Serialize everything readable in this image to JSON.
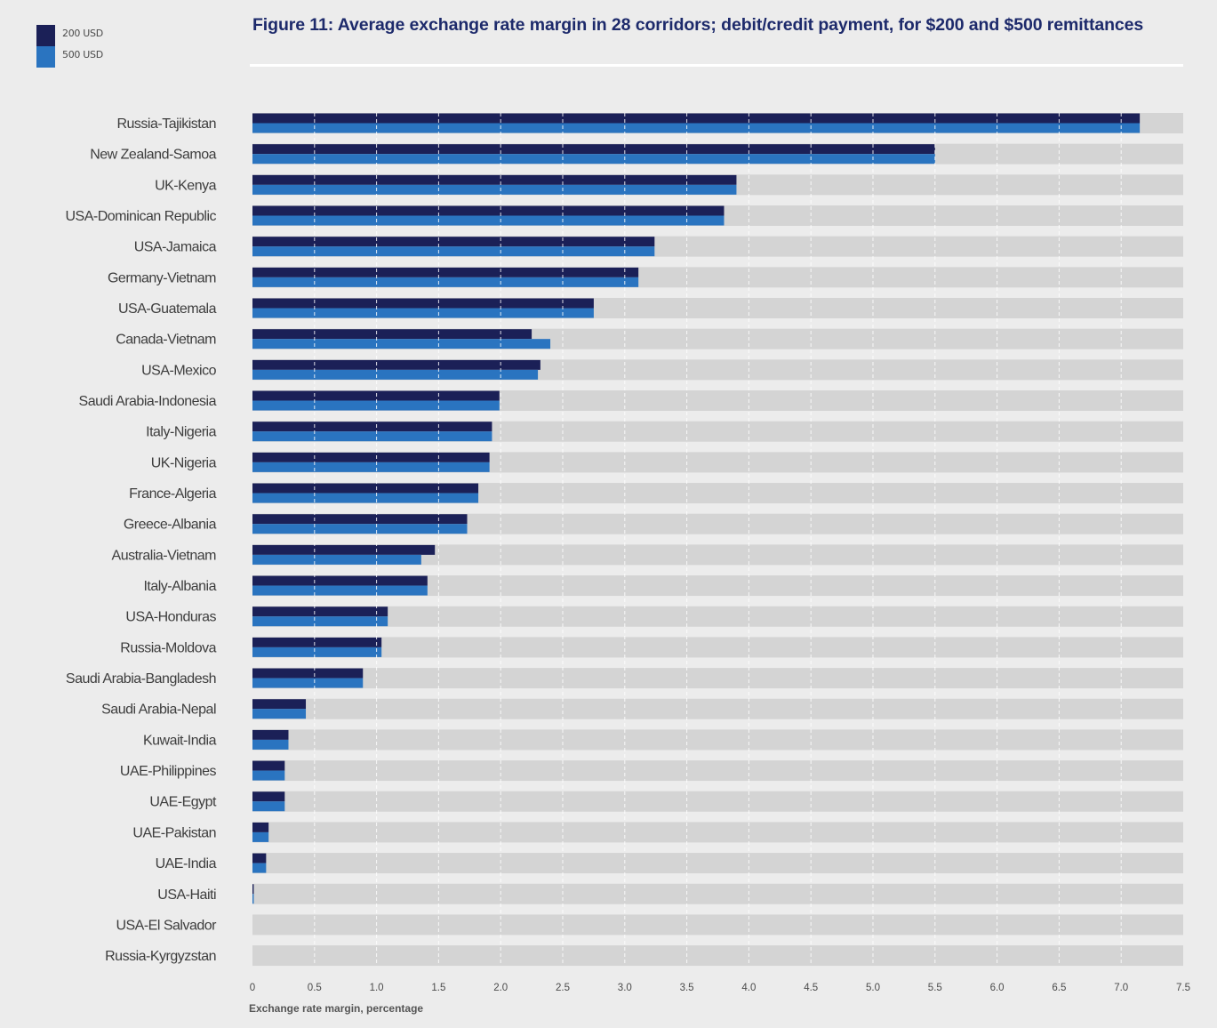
{
  "colors": {
    "background": "#ececec",
    "track": "#d4d4d4",
    "series_200": "#1b2057",
    "series_500": "#2a74c0",
    "title": "#1d2a6b",
    "gridline": "#ffffff"
  },
  "legend": {
    "items": [
      {
        "label": "200 USD",
        "color": "#1b2057"
      },
      {
        "label": "500 USD",
        "color": "#2a74c0"
      }
    ]
  },
  "chart_data": {
    "type": "bar",
    "orientation": "horizontal",
    "title": "Figure 11: Average exchange rate margin in 28 corridors; debit/credit payment, for $200 and $500 remittances",
    "xlabel": "Exchange rate margin, percentage",
    "ylabel": "",
    "xlim": [
      0,
      7.5
    ],
    "x_ticks": [
      "0",
      "0.5",
      "1.0",
      "1.5",
      "2.0",
      "2.5",
      "3.0",
      "3.5",
      "4.0",
      "4.5",
      "5.0",
      "5.5",
      "6.0",
      "6.5",
      "7.0",
      "7.5"
    ],
    "grid": true,
    "legend_position": "top-left",
    "categories": [
      "Russia-Tajikistan",
      "New Zealand-Samoa",
      "UK-Kenya",
      "USA-Dominican Republic",
      "USA-Jamaica",
      "Germany-Vietnam",
      "USA-Guatemala",
      "Canada-Vietnam",
      "USA-Mexico",
      "Saudi Arabia-Indonesia",
      "Italy-Nigeria",
      "UK-Nigeria",
      "France-Algeria",
      "Greece-Albania",
      "Australia-Vietnam",
      "Italy-Albania",
      "USA-Honduras",
      "Russia-Moldova",
      "Saudi Arabia-Bangladesh",
      "Saudi Arabia-Nepal",
      "Kuwait-India",
      "UAE-Philippines",
      "UAE-Egypt",
      "UAE-Pakistan",
      "UAE-India",
      "USA-Haiti",
      "USA-El Salvador",
      "Russia-Kyrgyzstan"
    ],
    "series": [
      {
        "name": "200 USD",
        "values": [
          7.15,
          5.5,
          3.9,
          3.8,
          3.24,
          3.11,
          2.75,
          2.25,
          2.32,
          1.99,
          1.93,
          1.91,
          1.82,
          1.73,
          1.47,
          1.41,
          1.09,
          1.04,
          0.89,
          0.43,
          0.29,
          0.26,
          0.26,
          0.13,
          0.11,
          0.01,
          0.0,
          0.0
        ]
      },
      {
        "name": "500 USD",
        "values": [
          7.15,
          5.5,
          3.9,
          3.8,
          3.24,
          3.11,
          2.75,
          2.4,
          2.3,
          1.99,
          1.93,
          1.91,
          1.82,
          1.73,
          1.36,
          1.41,
          1.09,
          1.04,
          0.89,
          0.43,
          0.29,
          0.26,
          0.26,
          0.13,
          0.11,
          0.01,
          0.0,
          0.0
        ]
      }
    ]
  }
}
